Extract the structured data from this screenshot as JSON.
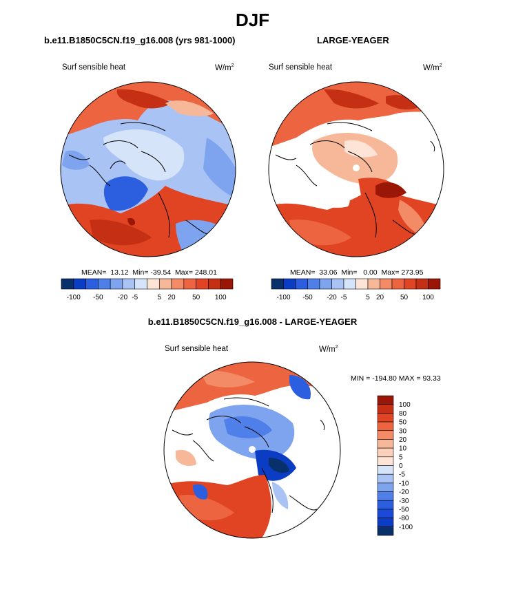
{
  "title": "DJF",
  "colors": {
    "scale": [
      "#08306b",
      "#0b3cc4",
      "#2b5fe0",
      "#4f7fe8",
      "#7ea4ef",
      "#a9c3f4",
      "#d6e4fa",
      "#fde4d6",
      "#f7b89a",
      "#f28b66",
      "#ec6440",
      "#e04422",
      "#c53014",
      "#9a1606"
    ],
    "land_edge": "#000000"
  },
  "panels": [
    {
      "case_title": "b.e11.B1850C5CN.f19_g16.008 (yrs 981-1000)",
      "variable": "Surf sensible heat",
      "units_base": "W/m",
      "units_exp": "2",
      "stats": {
        "mean": "13.12",
        "min": "-39.54",
        "max": "248.01"
      },
      "stats_text": "MEAN=  13.12  Min= -39.54  Max= 248.01",
      "colorbar_ticks": [
        "-100",
        "-50",
        "-20",
        "-5",
        "5",
        "20",
        "50",
        "100"
      ]
    },
    {
      "case_title": "LARGE-YEAGER",
      "variable": "Surf sensible heat",
      "units_base": "W/m",
      "units_exp": "2",
      "stats": {
        "mean": "33.06",
        "min": "0.00",
        "max": "273.95"
      },
      "stats_text": "MEAN=  33.06  Min=   0.00  Max= 273.95",
      "colorbar_ticks": [
        "-100",
        "-50",
        "-20",
        "-5",
        "5",
        "20",
        "50",
        "100"
      ]
    }
  ],
  "difference": {
    "title": "b.e11.B1850C5CN.f19_g16.008 - LARGE-YEAGER",
    "variable": "Surf sensible heat",
    "units_base": "W/m",
    "units_exp": "2",
    "minmax_text": "MIN = -194.80 MAX =  93.33",
    "colorbar_levels": [
      "100",
      "80",
      "50",
      "30",
      "20",
      "10",
      "5",
      "0",
      "-5",
      "-10",
      "-20",
      "-30",
      "-50",
      "-80",
      "-100"
    ]
  },
  "chart_data": [
    {
      "type": "heatmap",
      "projection": "north-polar-stereographic",
      "title": "b.e11.B1850C5CN.f19_g16.008 (yrs 981-1000)",
      "variable": "Surf sensible heat",
      "units": "W/m^2",
      "contour_levels": [
        -100,
        -50,
        -20,
        -5,
        5,
        20,
        50,
        100
      ],
      "mean": 13.12,
      "min": -39.54,
      "max": 248.01
    },
    {
      "type": "heatmap",
      "projection": "north-polar-stereographic",
      "title": "LARGE-YEAGER",
      "variable": "Surf sensible heat",
      "units": "W/m^2",
      "contour_levels": [
        -100,
        -50,
        -20,
        -5,
        5,
        20,
        50,
        100
      ],
      "mean": 33.06,
      "min": 0.0,
      "max": 273.95
    },
    {
      "type": "heatmap",
      "projection": "north-polar-stereographic",
      "title": "b.e11.B1850C5CN.f19_g16.008 - LARGE-YEAGER",
      "variable": "Surf sensible heat",
      "units": "W/m^2",
      "contour_levels": [
        -100,
        -80,
        -50,
        -30,
        -20,
        -10,
        -5,
        0,
        5,
        10,
        20,
        30,
        50,
        80,
        100
      ],
      "min": -194.8,
      "max": 93.33
    }
  ]
}
